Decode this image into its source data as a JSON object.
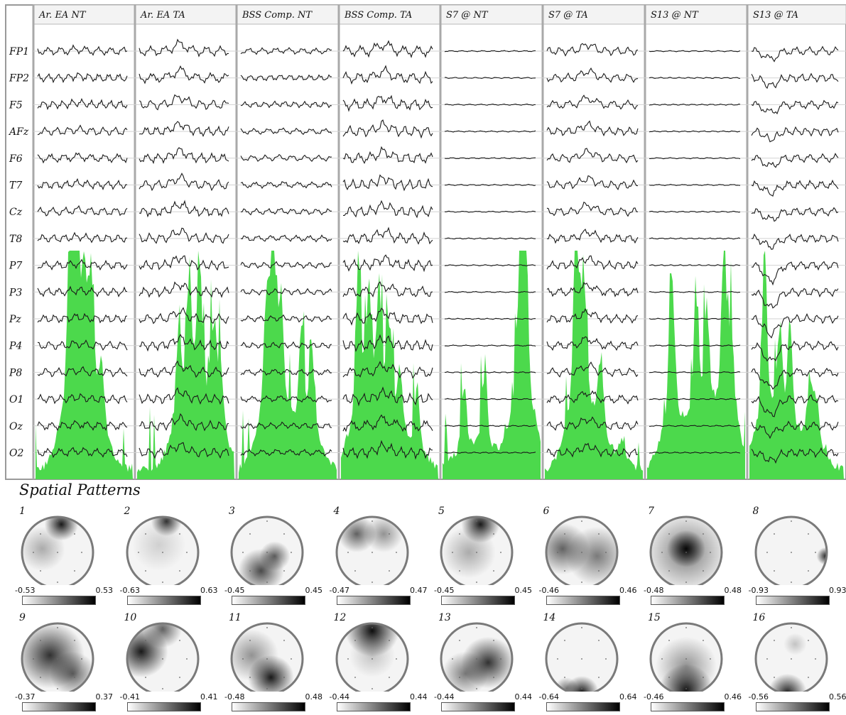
{
  "chart_data": {
    "type": "eeg-traces",
    "columns": [
      "Ar. EA NT",
      "Ar. EA TA",
      "BSS Comp. NT",
      "BSS Comp. TA",
      "S7 @ NT",
      "S7 @ TA",
      "S13 @ NT",
      "S13 @ TA"
    ],
    "channels": [
      "FP1",
      "FP2",
      "F5",
      "AFz",
      "F6",
      "T7",
      "Cz",
      "T8",
      "P7",
      "P3",
      "Pz",
      "P4",
      "P8",
      "O1",
      "Oz",
      "O2"
    ],
    "histogram_color": "#4cd94c",
    "trace_color": "#1a1a1a"
  },
  "spatial": {
    "title": "Spatial Patterns",
    "maps": [
      {
        "num": "1",
        "min": "-0.53",
        "max": "0.53"
      },
      {
        "num": "2",
        "min": "-0.63",
        "max": "0.63"
      },
      {
        "num": "3",
        "min": "-0.45",
        "max": "0.45"
      },
      {
        "num": "4",
        "min": "-0.47",
        "max": "0.47"
      },
      {
        "num": "5",
        "min": "-0.45",
        "max": "0.45"
      },
      {
        "num": "6",
        "min": "-0.46",
        "max": "0.46"
      },
      {
        "num": "7",
        "min": "-0.48",
        "max": "0.48"
      },
      {
        "num": "8",
        "min": "-0.93",
        "max": "0.93"
      },
      {
        "num": "9",
        "min": "-0.37",
        "max": "0.37"
      },
      {
        "num": "10",
        "min": "-0.41",
        "max": "0.41"
      },
      {
        "num": "11",
        "min": "-0.48",
        "max": "0.48"
      },
      {
        "num": "12",
        "min": "-0.44",
        "max": "0.44"
      },
      {
        "num": "13",
        "min": "-0.44",
        "max": "0.44"
      },
      {
        "num": "14",
        "min": "-0.64",
        "max": "0.64"
      },
      {
        "num": "15",
        "min": "-0.46",
        "max": "0.46"
      },
      {
        "num": "16",
        "min": "-0.56",
        "max": "0.56"
      }
    ]
  }
}
